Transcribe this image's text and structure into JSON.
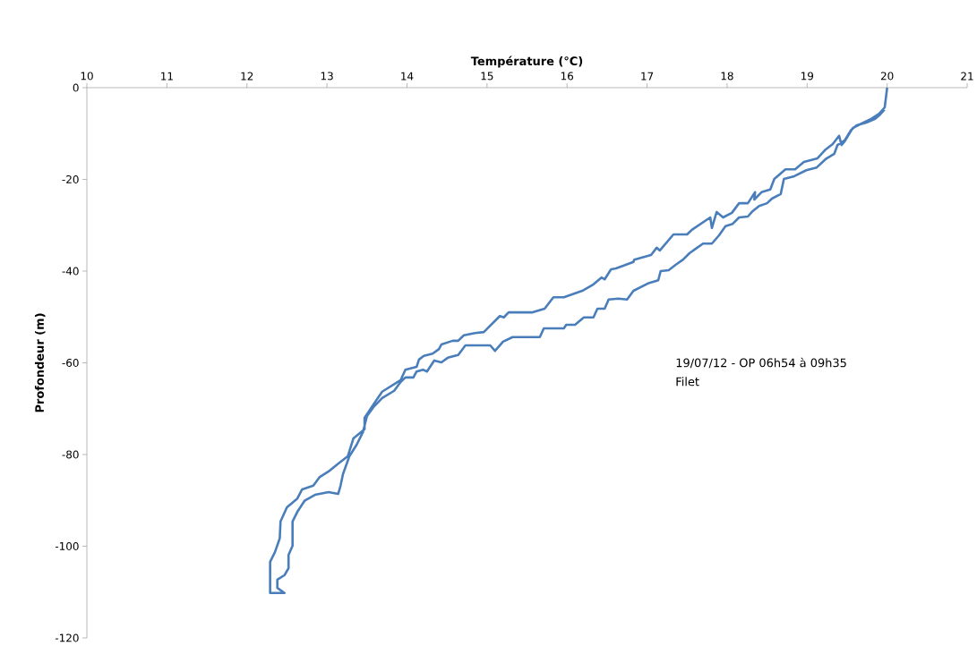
{
  "chart_data": {
    "type": "line",
    "xlabel": "Température (°C)",
    "ylabel": "Profondeur (m)",
    "color": "#4a7ebb",
    "xlim": [
      10,
      21
    ],
    "ylim": [
      -120,
      0
    ],
    "xticks": [
      10,
      11,
      12,
      13,
      14,
      15,
      16,
      17,
      18,
      19,
      20,
      21
    ],
    "yticks": [
      -120,
      -100,
      -80,
      -60,
      -40,
      -20,
      0
    ],
    "annotations": [
      "19/07/12 - OP 06h54 à 09h35",
      "Filet"
    ],
    "x": [
      20.0,
      19.97,
      19.9,
      19.8,
      19.66,
      19.57,
      19.47,
      19.43,
      19.4,
      19.32,
      19.23,
      19.13,
      18.96,
      18.85,
      18.73,
      18.59,
      18.54,
      18.43,
      18.34,
      18.35,
      18.26,
      18.15,
      18.06,
      17.95,
      17.87,
      17.81,
      17.79,
      17.56,
      17.5,
      17.33,
      17.16,
      17.12,
      17.05,
      16.84,
      16.83,
      16.71,
      16.61,
      16.55,
      16.47,
      16.43,
      16.33,
      16.19,
      15.96,
      15.83,
      15.72,
      15.57,
      15.27,
      15.21,
      15.16,
      14.96,
      14.85,
      14.71,
      14.64,
      14.57,
      14.43,
      14.4,
      14.32,
      14.21,
      14.15,
      14.12,
      13.98,
      13.92,
      13.69,
      13.58,
      13.47,
      13.47,
      13.33,
      13.26,
      13.14,
      13.02,
      12.91,
      12.83,
      12.69,
      12.63,
      12.5,
      12.42,
      12.41,
      12.35,
      12.29,
      12.29,
      12.47,
      12.38,
      12.38,
      12.47,
      12.52,
      12.52,
      12.57,
      12.57,
      12.63,
      12.72,
      12.85,
      13.02,
      13.14,
      13.17,
      13.2,
      13.28,
      13.37,
      13.45,
      13.5,
      13.58,
      13.69,
      13.84,
      13.92,
      13.98,
      14.08,
      14.12,
      14.2,
      14.25,
      14.34,
      14.43,
      14.51,
      14.64,
      14.73,
      15.04,
      15.1,
      15.2,
      15.32,
      15.66,
      15.71,
      15.96,
      15.99,
      16.1,
      16.21,
      16.33,
      16.38,
      16.47,
      16.52,
      16.64,
      16.75,
      16.83,
      17.01,
      17.14,
      17.17,
      17.27,
      17.36,
      17.45,
      17.53,
      17.61,
      17.7,
      17.81,
      17.9,
      17.98,
      18.07,
      18.15,
      18.26,
      18.31,
      18.4,
      18.5,
      18.56,
      18.67,
      18.71,
      18.84,
      18.99,
      19.12,
      19.23,
      19.34,
      19.38,
      19.47,
      19.55,
      19.62,
      19.74,
      19.85,
      19.91,
      19.97
    ],
    "values": [
      0,
      -4.3,
      -5.7,
      -6.8,
      -8.0,
      -8.8,
      -11.7,
      -12.5,
      -10.5,
      -12.3,
      -13.5,
      -15.4,
      -16.2,
      -17.8,
      -17.8,
      -19.9,
      -22.2,
      -22.8,
      -24.4,
      -22.8,
      -25.2,
      -25.2,
      -27.3,
      -28.3,
      -27.1,
      -30.6,
      -28.3,
      -31.0,
      -32.0,
      -32.0,
      -35.5,
      -34.9,
      -36.5,
      -37.5,
      -38.0,
      -38.8,
      -39.4,
      -39.6,
      -41.8,
      -41.4,
      -42.9,
      -44.3,
      -45.7,
      -45.7,
      -48.2,
      -49.0,
      -49.0,
      -50.1,
      -49.8,
      -53.3,
      -53.5,
      -54.0,
      -55.2,
      -55.2,
      -56.0,
      -57.0,
      -58.0,
      -58.5,
      -59.3,
      -60.9,
      -61.5,
      -63.8,
      -66.3,
      -69.1,
      -72.0,
      -74.5,
      -76.5,
      -80.4,
      -82.0,
      -83.7,
      -84.9,
      -86.8,
      -87.6,
      -89.6,
      -91.5,
      -94.6,
      -98.3,
      -101.3,
      -103.4,
      -110.2,
      -110.2,
      -109.1,
      -107.3,
      -106.3,
      -104.8,
      -101.9,
      -99.9,
      -94.6,
      -92.5,
      -90.1,
      -88.8,
      -88.2,
      -88.6,
      -86.8,
      -84.3,
      -80.4,
      -77.9,
      -75.1,
      -71.6,
      -69.7,
      -67.7,
      -66.1,
      -64.2,
      -63.2,
      -63.2,
      -61.9,
      -61.5,
      -61.9,
      -59.5,
      -59.9,
      -58.9,
      -58.3,
      -56.2,
      -56.2,
      -57.4,
      -55.4,
      -54.4,
      -54.4,
      -52.5,
      -52.5,
      -51.7,
      -51.7,
      -50.1,
      -50.1,
      -48.2,
      -48.2,
      -46.2,
      -46.0,
      -46.2,
      -44.3,
      -42.7,
      -42.0,
      -40.0,
      -39.8,
      -38.6,
      -37.5,
      -36.1,
      -35.1,
      -34.0,
      -34.0,
      -32.2,
      -30.2,
      -29.7,
      -28.3,
      -28.1,
      -27.1,
      -25.8,
      -25.2,
      -24.2,
      -23.2,
      -19.9,
      -19.3,
      -18.0,
      -17.4,
      -15.6,
      -14.4,
      -12.5,
      -11.5,
      -9.2,
      -8.2,
      -7.6,
      -6.8,
      -5.9,
      -4.7
    ]
  }
}
